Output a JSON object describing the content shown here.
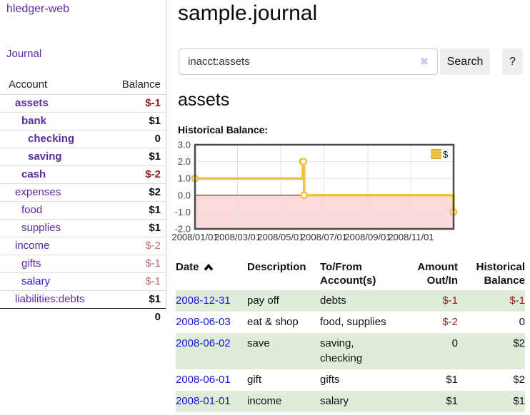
{
  "theme": {
    "link_purple": "#5b2a9e",
    "link_blue": "#1515e0",
    "negative_strong": "#941a1c",
    "negative_weak": "#c36b6e",
    "table_row_green": "#deecd8",
    "series_gold": "#edc240"
  },
  "sidebar": {
    "brand": "hledger-web",
    "journal_link": "Journal",
    "account_header": "Account",
    "balance_header": "Balance",
    "accounts": [
      {
        "label": "assets",
        "balance": "$-1"
      },
      {
        "label": "bank",
        "balance": "$1"
      },
      {
        "label": "checking",
        "balance": "0"
      },
      {
        "label": "saving",
        "balance": "$1"
      },
      {
        "label": "cash",
        "balance": "$-2"
      },
      {
        "label": "expenses",
        "balance": "$2"
      },
      {
        "label": "food",
        "balance": "$1"
      },
      {
        "label": "supplies",
        "balance": "$1"
      },
      {
        "label": "income",
        "balance": "$-2"
      },
      {
        "label": "gifts",
        "balance": "$-1"
      },
      {
        "label": "salary",
        "balance": "$-1"
      },
      {
        "label": "liabilities:debts",
        "balance": "$1"
      }
    ],
    "total": "0"
  },
  "main": {
    "title": "sample.journal",
    "search": {
      "value": "inacct:assets",
      "clear_icon": "✖",
      "search_button": "Search",
      "help_button": "?"
    },
    "account_heading": "assets",
    "chart_heading": "Historical Balance:"
  },
  "chart_data": {
    "type": "line",
    "style": "step",
    "title": "Historical Balance",
    "xlim": [
      "2008-01-01",
      "2008-12-31"
    ],
    "ylim": [
      -2,
      3
    ],
    "y_ticks": [
      "3.0",
      "2.0",
      "1.0",
      "0.0",
      "-1.0",
      "-2.0"
    ],
    "x_ticks": [
      "2008/01/01",
      "2008/03/01",
      "2008/05/01",
      "2008/07/01",
      "2008/09/01",
      "2008/11/01"
    ],
    "grid": true,
    "legend_position": "top-right",
    "negative_region_color": "#fadada",
    "zero_line_color": "#8b1d1d",
    "series": [
      {
        "name": "$",
        "color": "#edc240",
        "points": [
          [
            "2008-01-01",
            1
          ],
          [
            "2008-06-01",
            2
          ],
          [
            "2008-06-02",
            2
          ],
          [
            "2008-06-03",
            0
          ],
          [
            "2008-12-31",
            -1
          ]
        ]
      }
    ]
  },
  "register": {
    "headers": {
      "date": "Date",
      "description": "Description",
      "accounts": "To/From Account(s)",
      "amount": "Amount Out/In",
      "balance": "Historical Balance"
    },
    "rows": [
      {
        "date": "2008-12-31",
        "description": "pay off",
        "accounts": "debts",
        "amount": "$-1",
        "balance": "$-1"
      },
      {
        "date": "2008-06-03",
        "description": "eat & shop",
        "accounts": "food, supplies",
        "amount": "$-2",
        "balance": "0"
      },
      {
        "date": "2008-06-02",
        "description": "save",
        "accounts": "saving, checking",
        "amount": "0",
        "balance": "$2"
      },
      {
        "date": "2008-06-01",
        "description": "gift",
        "accounts": "gifts",
        "amount": "$1",
        "balance": "$2"
      },
      {
        "date": "2008-01-01",
        "description": "income",
        "accounts": "salary",
        "amount": "$1",
        "balance": "$1"
      }
    ]
  }
}
